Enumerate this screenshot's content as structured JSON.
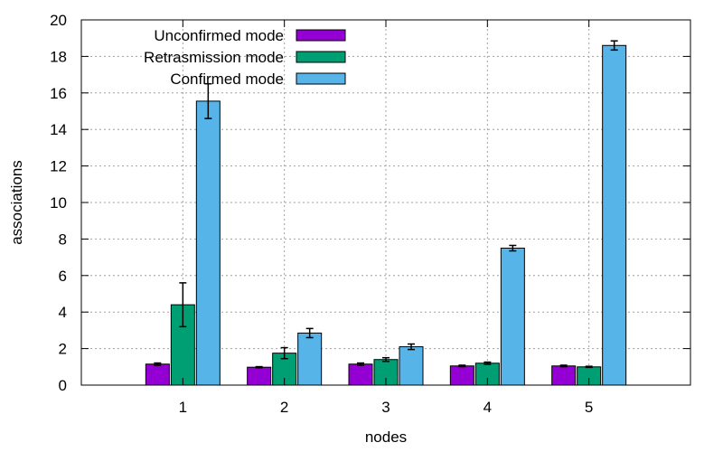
{
  "chart_data": {
    "type": "bar",
    "xlabel": "nodes",
    "ylabel": "associations",
    "ylim": [
      0,
      20
    ],
    "yticks": [
      0,
      2,
      4,
      6,
      8,
      10,
      12,
      14,
      16,
      18,
      20
    ],
    "categories": [
      "1",
      "2",
      "3",
      "4",
      "5"
    ],
    "grid": true,
    "legend_position": "top-left",
    "series": [
      {
        "name": "Unconfirmed mode",
        "color": "#9400d3",
        "values": [
          1.15,
          0.98,
          1.15,
          1.05,
          1.05
        ],
        "errors": [
          0.06,
          0.03,
          0.06,
          0.04,
          0.04
        ]
      },
      {
        "name": "Retrasmission mode",
        "color": "#009e73",
        "values": [
          4.4,
          1.75,
          1.4,
          1.2,
          1.0
        ],
        "errors": [
          1.2,
          0.3,
          0.1,
          0.06,
          0.03
        ]
      },
      {
        "name": "Confirmed mode",
        "color": "#56b4e9",
        "values": [
          15.55,
          2.85,
          2.1,
          7.5,
          18.6
        ],
        "errors": [
          0.95,
          0.25,
          0.15,
          0.15,
          0.25
        ]
      }
    ]
  }
}
